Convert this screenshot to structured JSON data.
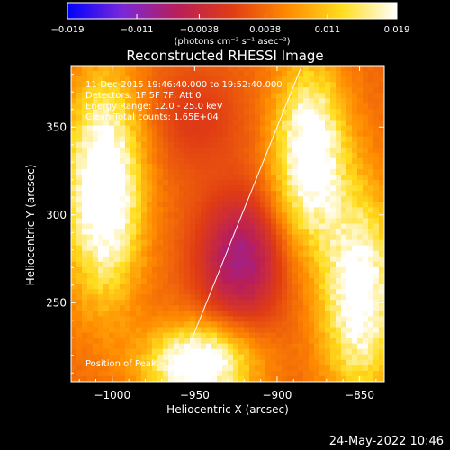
{
  "chart_data": {
    "type": "heatmap",
    "title": "Reconstructed RHESSI Image",
    "xlabel": "Heliocentric X (arcsec)",
    "ylabel": "Heliocentric Y (arcsec)",
    "xlim": [
      -1025,
      -835
    ],
    "ylim": [
      205,
      385
    ],
    "xticks": [
      -1000,
      -950,
      -900,
      -850
    ],
    "yticks": [
      250,
      300,
      350
    ],
    "xtick_labels": [
      "−1000",
      "−950",
      "−900",
      "−850"
    ],
    "ytick_labels": [
      "250",
      "300",
      "350"
    ],
    "colorbar": {
      "range": [
        -0.019,
        0.019
      ],
      "ticks": [
        -0.019,
        -0.011,
        -0.0038,
        0.0038,
        0.011,
        0.019
      ],
      "tick_labels": [
        "−0.019",
        "−0.011",
        "−0.0038",
        "0.0038",
        "0.011",
        "0.019"
      ],
      "unit_label": "(photons cm⁻² s⁻¹ asec⁻²)",
      "colors": [
        "#0000ff",
        "#7a28d8",
        "#b81e5a",
        "#e03c14",
        "#ff8a00",
        "#ffdd1e",
        "#ffffff"
      ]
    },
    "info_lines": [
      "11-Dec-2015 19:46:40.000 to 19:52:40.000",
      "Detectors: 1F 5F 7F, Att 0",
      "Energy Range: 12.0 - 25.0 keV",
      "Clean     Total counts: 1.65E+04"
    ],
    "peak_label": "Position of Peak = [-1003,319]",
    "peak": [
      -1003,
      319
    ],
    "limb_line": [
      [
        -960,
        210
      ],
      [
        -885,
        385
      ]
    ],
    "sources": [
      {
        "x": -1005,
        "y": 315,
        "sx": 16,
        "sy": 42,
        "amp": 0.021
      },
      {
        "x": -880,
        "y": 335,
        "sx": 15,
        "sy": 35,
        "amp": 0.019
      },
      {
        "x": -850,
        "y": 255,
        "sx": 16,
        "sy": 40,
        "amp": 0.018
      },
      {
        "x": -948,
        "y": 215,
        "sx": 22,
        "sy": 15,
        "amp": 0.02
      },
      {
        "x": -922,
        "y": 275,
        "sx": 18,
        "sy": 25,
        "amp": -0.012
      },
      {
        "x": -950,
        "y": 355,
        "sx": 20,
        "sy": 20,
        "amp": -0.004
      }
    ],
    "background": 0.0035
  },
  "footer": {
    "date": "24-May-2022 10:46"
  }
}
